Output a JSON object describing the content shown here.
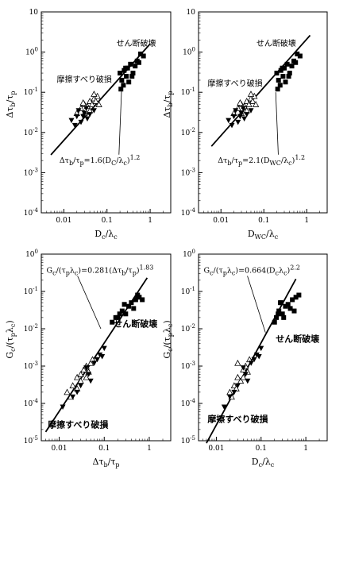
{
  "chart_data": [
    {
      "type": "scatter",
      "xlabel": "Dc/λc",
      "ylabel": "Δτb/τp",
      "xscale": "log",
      "yscale": "log",
      "xlim": [
        0.003,
        3
      ],
      "ylim": [
        0.0001,
        10
      ],
      "xticks": [
        "0.01",
        "0.1",
        "1"
      ],
      "yticks": [
        "10",
        "10⁰",
        "10⁻¹",
        "10⁻²",
        "10⁻³",
        "10⁻⁴"
      ],
      "annotations": {
        "shear": "せん断破壊",
        "friction": "摩擦すべり破損"
      },
      "equation": "Δτb/τp=1.6(Dc/λc)^1.2",
      "fit": {
        "a": 1.6,
        "b": 1.2,
        "x_range": [
          0.005,
          1.0
        ]
      },
      "series": [
        {
          "marker": "triangle-open",
          "x": [
            0.02,
            0.025,
            0.03,
            0.035,
            0.04,
            0.045,
            0.05,
            0.03,
            0.055,
            0.06,
            0.04,
            0.028,
            0.065,
            0.05
          ],
          "y": [
            0.03,
            0.04,
            0.05,
            0.045,
            0.06,
            0.05,
            0.07,
            0.03,
            0.06,
            0.08,
            0.035,
            0.055,
            0.05,
            0.09
          ]
        },
        {
          "marker": "triangle-down-filled",
          "x": [
            0.015,
            0.02,
            0.025,
            0.03,
            0.018,
            0.035,
            0.022,
            0.04,
            0.028,
            0.05,
            0.033
          ],
          "y": [
            0.02,
            0.025,
            0.018,
            0.03,
            0.015,
            0.022,
            0.035,
            0.028,
            0.025,
            0.035,
            0.04
          ]
        },
        {
          "marker": "square-filled",
          "x": [
            0.2,
            0.22,
            0.25,
            0.3,
            0.35,
            0.28,
            0.45,
            0.5,
            0.6,
            0.24,
            0.4,
            0.55,
            0.32,
            0.27,
            0.7,
            0.38,
            0.21
          ],
          "y": [
            0.3,
            0.2,
            0.35,
            0.4,
            0.5,
            0.25,
            0.45,
            0.6,
            0.9,
            0.15,
            0.3,
            0.55,
            0.18,
            0.4,
            0.8,
            0.25,
            0.12
          ]
        }
      ]
    },
    {
      "type": "scatter",
      "xlabel": "Dwc/λc",
      "ylabel": "Δτb/τp",
      "xscale": "log",
      "yscale": "log",
      "xlim": [
        0.003,
        3
      ],
      "ylim": [
        0.0001,
        10
      ],
      "xticks": [
        "0.01",
        "0.1",
        "1"
      ],
      "yticks": [
        "10",
        "10⁰",
        "10⁻¹",
        "10⁻²",
        "10⁻³",
        "10⁻⁴"
      ],
      "annotations": {
        "shear": "せん断破壊",
        "friction": "摩擦すべり破損"
      },
      "equation": "Δτb/τp=2.1(Dwc/λc)^1.2",
      "fit": {
        "a": 2.1,
        "b": 1.2,
        "x_range": [
          0.006,
          1.2
        ]
      },
      "series": [
        {
          "marker": "triangle-open",
          "x": [
            0.02,
            0.025,
            0.03,
            0.035,
            0.04,
            0.045,
            0.05,
            0.03,
            0.055,
            0.06,
            0.04,
            0.028,
            0.065,
            0.05
          ],
          "y": [
            0.03,
            0.04,
            0.05,
            0.045,
            0.06,
            0.05,
            0.07,
            0.03,
            0.06,
            0.08,
            0.035,
            0.055,
            0.05,
            0.09
          ]
        },
        {
          "marker": "triangle-down-filled",
          "x": [
            0.015,
            0.02,
            0.025,
            0.03,
            0.018,
            0.035,
            0.022,
            0.04,
            0.028,
            0.05,
            0.033
          ],
          "y": [
            0.02,
            0.025,
            0.018,
            0.03,
            0.015,
            0.022,
            0.035,
            0.028,
            0.025,
            0.035,
            0.04
          ]
        },
        {
          "marker": "square-filled",
          "x": [
            0.2,
            0.22,
            0.25,
            0.3,
            0.35,
            0.28,
            0.45,
            0.5,
            0.6,
            0.24,
            0.4,
            0.55,
            0.32,
            0.27,
            0.7,
            0.38,
            0.21
          ],
          "y": [
            0.3,
            0.2,
            0.35,
            0.4,
            0.5,
            0.25,
            0.45,
            0.6,
            0.9,
            0.15,
            0.3,
            0.55,
            0.18,
            0.4,
            0.8,
            0.25,
            0.12
          ]
        }
      ]
    },
    {
      "type": "scatter",
      "xlabel": "Δτb/τp",
      "ylabel": "Gc/(τpλc)",
      "xscale": "log",
      "yscale": "log",
      "xlim": [
        0.004,
        3
      ],
      "ylim": [
        1e-05,
        1
      ],
      "xticks": [
        "0.01",
        "0.1",
        "1"
      ],
      "yticks": [
        "10⁰",
        "10⁻¹",
        "10⁻²",
        "10⁻³",
        "10⁻⁴",
        "10⁻⁵"
      ],
      "annotations": {
        "shear": "せん断破壊",
        "friction": "摩擦すべり破損"
      },
      "equation": "Gc/(τpλc)=0.281(Δτb/τp)^1.83",
      "fit": {
        "a": 0.281,
        "b": 1.83,
        "x_range": [
          0.005,
          0.9
        ]
      },
      "series": [
        {
          "marker": "triangle-open",
          "x": [
            0.015,
            0.02,
            0.025,
            0.03,
            0.035,
            0.04,
            0.045,
            0.05,
            0.03,
            0.055,
            0.025,
            0.04,
            0.018
          ],
          "y": [
            0.0002,
            0.0003,
            0.0005,
            0.0004,
            0.0008,
            0.001,
            0.0007,
            0.0012,
            0.0006,
            0.0015,
            0.00025,
            0.0005,
            0.00015
          ]
        },
        {
          "marker": "triangle-down-filled",
          "x": [
            0.012,
            0.02,
            0.03,
            0.045,
            0.06,
            0.08,
            0.1,
            0.04,
            0.07,
            0.025,
            0.05,
            0.09
          ],
          "y": [
            8e-05,
            0.00015,
            0.0003,
            0.0006,
            0.0012,
            0.002,
            0.003,
            0.0009,
            0.0015,
            0.0002,
            0.0004,
            0.0018
          ]
        },
        {
          "marker": "square-filled",
          "x": [
            0.15,
            0.2,
            0.25,
            0.3,
            0.35,
            0.4,
            0.45,
            0.5,
            0.6,
            0.7,
            0.22,
            0.28,
            0.18,
            0.55
          ],
          "y": [
            0.015,
            0.02,
            0.03,
            0.025,
            0.04,
            0.05,
            0.035,
            0.06,
            0.07,
            0.06,
            0.025,
            0.045,
            0.02,
            0.08
          ]
        }
      ]
    },
    {
      "type": "scatter",
      "xlabel": "Dc/λc",
      "ylabel": "Gc/(τpλc)",
      "xscale": "log",
      "yscale": "log",
      "xlim": [
        0.004,
        3
      ],
      "ylim": [
        1e-05,
        1
      ],
      "xticks": [
        "0.01",
        "0.1",
        "1"
      ],
      "yticks": [
        "10⁰",
        "10⁻¹",
        "10⁻²",
        "10⁻³",
        "10⁻⁴",
        "10⁻⁵"
      ],
      "annotations": {
        "shear": "せん断破壊",
        "friction": "摩擦すべり破損"
      },
      "equation": "Gc/(τpλc)=0.664(Dcλc)^2.2",
      "fit": {
        "a": 0.664,
        "b": 2.2,
        "x_range": [
          0.006,
          0.6
        ]
      },
      "series": [
        {
          "marker": "triangle-open",
          "x": [
            0.02,
            0.025,
            0.03,
            0.035,
            0.04,
            0.045,
            0.05,
            0.03,
            0.055,
            0.028,
            0.04,
            0.022
          ],
          "y": [
            0.0002,
            0.0003,
            0.0005,
            0.0004,
            0.0008,
            0.001,
            0.0007,
            0.0012,
            0.0015,
            0.00025,
            0.0005,
            0.00015
          ]
        },
        {
          "marker": "triangle-down-filled",
          "x": [
            0.015,
            0.02,
            0.03,
            0.045,
            0.06,
            0.08,
            0.1,
            0.04,
            0.07,
            0.025,
            0.05,
            0.09
          ],
          "y": [
            8e-05,
            0.00015,
            0.0003,
            0.0006,
            0.0012,
            0.002,
            0.003,
            0.0009,
            0.0015,
            0.0002,
            0.0004,
            0.0018
          ]
        },
        {
          "marker": "square-filled",
          "x": [
            0.2,
            0.22,
            0.25,
            0.3,
            0.35,
            0.28,
            0.45,
            0.5,
            0.6,
            0.24,
            0.4,
            0.55,
            0.32,
            0.27,
            0.7
          ],
          "y": [
            0.015,
            0.02,
            0.03,
            0.025,
            0.04,
            0.05,
            0.035,
            0.06,
            0.07,
            0.025,
            0.045,
            0.03,
            0.02,
            0.05,
            0.08
          ]
        }
      ]
    }
  ]
}
